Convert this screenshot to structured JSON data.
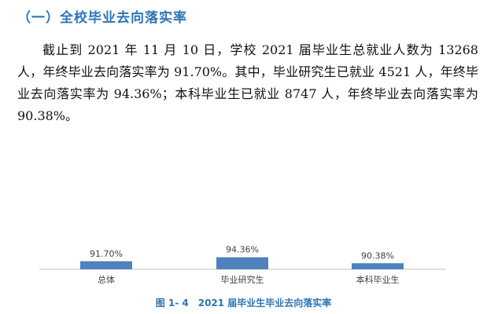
{
  "section": {
    "heading": "（一）全校毕业去向落实率"
  },
  "paragraph": "截止到 2021 年 11 月 10 日，学校 2021 届毕业生总就业人数为 13268 人，年终毕业去向落实率为 91.70%。其中，毕业研究生已就业 4521 人，年终毕业去向落实率为 94.36%；本科毕业生已就业 8747 人，年终毕业去向落实率为 90.38%。",
  "caption": "图 1- 4　2021 届毕业生毕业去向落实率",
  "colors": {
    "bar": "#4f81bd",
    "heading": "#2e75b6",
    "axis": "#bfbfbf"
  },
  "chart_data": {
    "type": "bar",
    "categories": [
      "总体",
      "毕业研究生",
      "本科毕业生"
    ],
    "values": [
      91.7,
      94.36,
      90.38
    ],
    "value_labels": [
      "91.70%",
      "94.36%",
      "90.38%"
    ],
    "unit": "%",
    "ylim": [
      0,
      100
    ],
    "grid": false,
    "legend": "none"
  }
}
